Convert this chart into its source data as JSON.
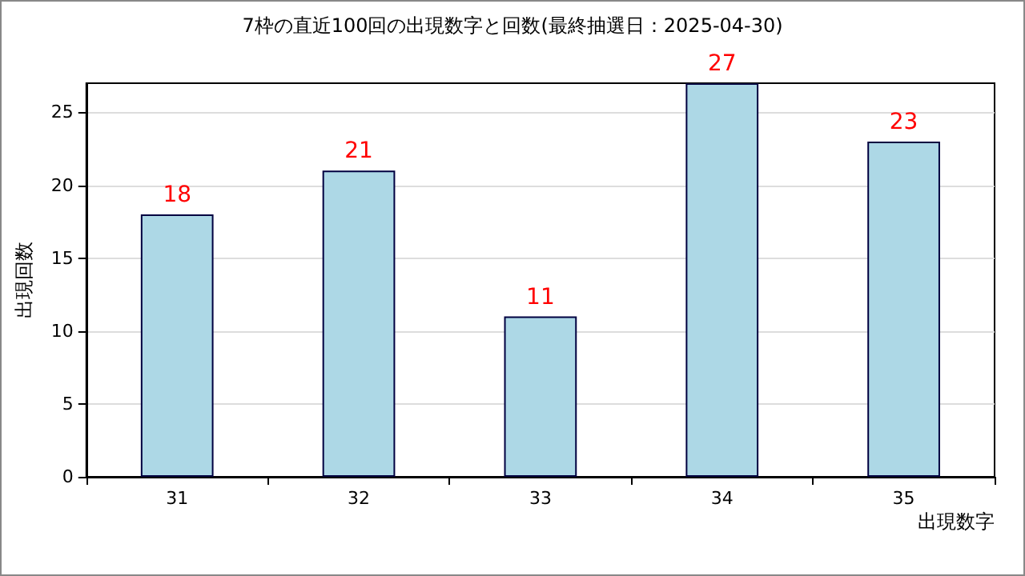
{
  "chart_data": {
    "type": "bar",
    "title": "7枠の直近100回の出現数字と回数(最終抽選日：2025-04-30)",
    "xlabel": "出現数字",
    "ylabel": "出現回数",
    "categories": [
      "31",
      "32",
      "33",
      "34",
      "35"
    ],
    "values": [
      18,
      21,
      11,
      27,
      23
    ],
    "color": "#add8e6",
    "ylim": [
      0,
      27
    ],
    "yticks": [
      0,
      5,
      10,
      15,
      20,
      25
    ],
    "grid": "y",
    "data_labels": true
  }
}
